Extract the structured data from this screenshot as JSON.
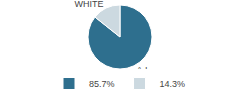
{
  "chart_data": {
    "type": "pie",
    "categories": [
      "A.I.",
      "WHITE"
    ],
    "values": [
      85.7,
      14.3
    ],
    "value_labels": [
      "85.7%",
      "14.3%"
    ],
    "colors": [
      "#2e6f8e",
      "#ccd9e0"
    ],
    "legend": "bottom"
  }
}
